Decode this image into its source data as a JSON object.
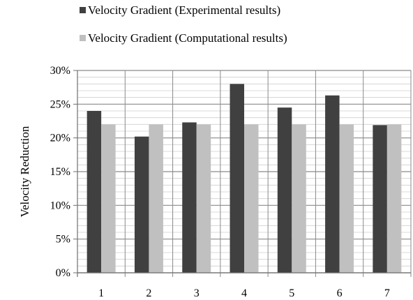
{
  "colors": {
    "experimental": "#404040",
    "computational": "#c0c0c0",
    "grid_major": "#8a8a8a",
    "grid_minor": "#cfcfcf",
    "axis": "#6f6f6f",
    "text": "#000000"
  },
  "chart_data": {
    "type": "bar",
    "title": "",
    "xlabel": "",
    "ylabel": "Velocity Reduction",
    "categories": [
      "1",
      "2",
      "3",
      "4",
      "5",
      "6",
      "7"
    ],
    "ylim": [
      0,
      30
    ],
    "y_ticks": [
      0,
      5,
      10,
      15,
      20,
      25,
      30
    ],
    "y_tick_labels": [
      "0%",
      "5%",
      "10%",
      "15%",
      "20%",
      "25%",
      "30%"
    ],
    "minor_step": 1,
    "grid": true,
    "legend_position": "top",
    "series": [
      {
        "name": "Velocity Gradient (Experimental  results)",
        "values": [
          24.0,
          20.2,
          22.3,
          28.0,
          24.5,
          26.3,
          21.9
        ],
        "color_key": "experimental"
      },
      {
        "name": "Velocity Gradient (Computational  results)",
        "values": [
          22.0,
          22.0,
          22.0,
          22.0,
          22.0,
          22.0,
          22.0
        ],
        "color_key": "computational"
      }
    ]
  }
}
